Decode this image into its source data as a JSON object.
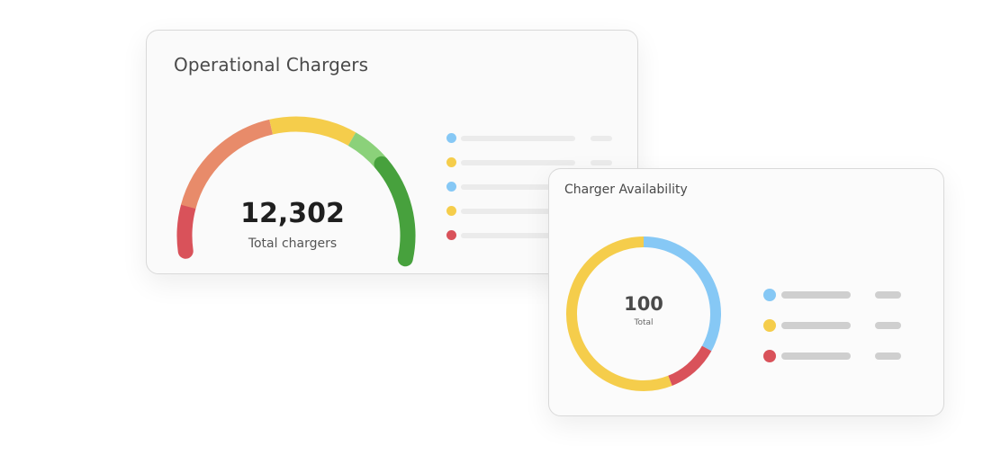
{
  "operational": {
    "title": "Operational Chargers",
    "total_value": "12,302",
    "total_label": "Total chargers",
    "gauge_segments": [
      {
        "color": "#d9525a"
      },
      {
        "color": "#e88b6a"
      },
      {
        "color": "#f5cd4b"
      },
      {
        "color": "#8bd17a"
      },
      {
        "color": "#47a13d"
      }
    ],
    "legend": [
      {
        "color": "#86c8f5"
      },
      {
        "color": "#f5cd4b"
      },
      {
        "color": "#86c8f5"
      },
      {
        "color": "#f5cd4b"
      },
      {
        "color": "#d9525a"
      }
    ]
  },
  "availability": {
    "title": "Charger Availability",
    "total_value": "100",
    "total_label": "Total",
    "donut_segments": [
      {
        "color": "#86c8f5",
        "share": 0.33
      },
      {
        "color": "#d9525a",
        "share": 0.11
      },
      {
        "color": "#f5cd4b",
        "share": 0.56
      }
    ],
    "legend": [
      {
        "color": "#86c8f5"
      },
      {
        "color": "#f5cd4b"
      },
      {
        "color": "#d9525a"
      }
    ]
  }
}
